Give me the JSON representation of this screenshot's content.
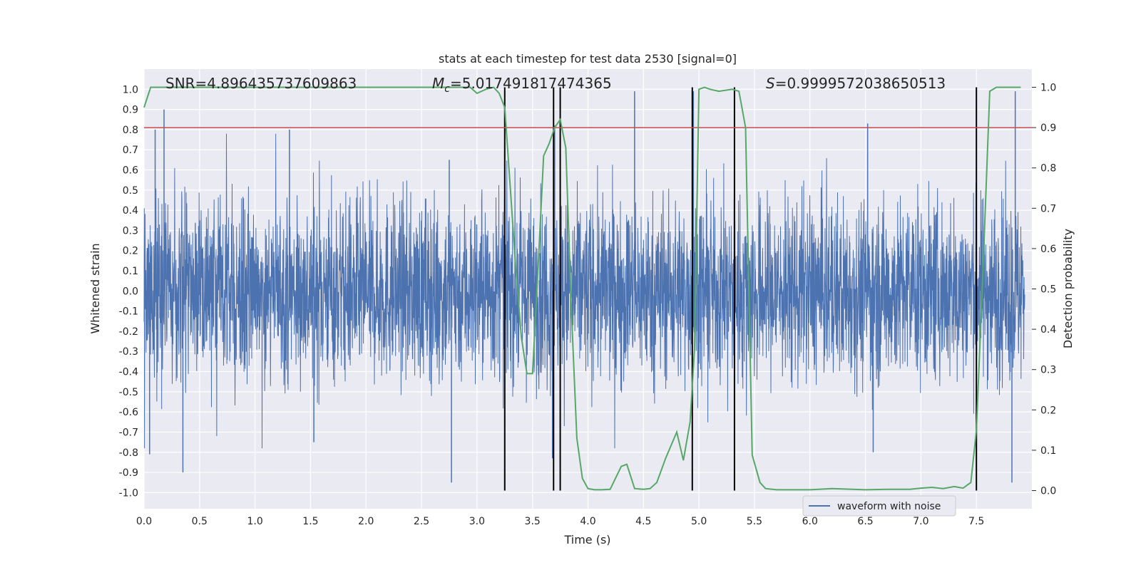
{
  "chart_data": {
    "type": "line",
    "title": "stats at each timestep for test data 2530 [signal=0]",
    "xlabel": "Time (s)",
    "ylabel": "Whitened strain",
    "y2label": "Detection probability",
    "xlim": [
      0.0,
      8.0
    ],
    "ylim": [
      -1.08,
      1.1
    ],
    "y2lim": [
      -0.045,
      1.045
    ],
    "xticks": [
      "0.0",
      "0.5",
      "1.0",
      "1.5",
      "2.0",
      "2.5",
      "3.0",
      "3.5",
      "4.0",
      "4.5",
      "5.0",
      "5.5",
      "6.0",
      "6.5",
      "7.0",
      "7.5"
    ],
    "yticks": [
      "1.0",
      "0.9",
      "0.8",
      "0.7",
      "0.6",
      "0.5",
      "0.4",
      "0.3",
      "0.2",
      "0.1",
      "0.0",
      "-0.1",
      "-0.2",
      "-0.3",
      "-0.4",
      "-0.5",
      "-0.6",
      "-0.7",
      "-0.8",
      "-0.9",
      "-1.0"
    ],
    "y2ticks": [
      "1.0",
      "0.9",
      "0.8",
      "0.7",
      "0.6",
      "0.5",
      "0.4",
      "0.3",
      "0.2",
      "0.1",
      "0.0"
    ],
    "grid": true,
    "legend_position": "lower-right",
    "annotations": {
      "snr": "SNR=4.896435737609863",
      "mc_symbol": "M",
      "mc_sub": "c",
      "mc_value": "=5.017491817474365",
      "s_symbol": "S",
      "s_value": "=0.9999572038650513"
    },
    "threshold": {
      "value": 0.9,
      "axis": "y2",
      "color": "#c44e52"
    },
    "vertical_lines": [
      3.25,
      3.69,
      3.75,
      4.94,
      5.32,
      7.5
    ],
    "series": [
      {
        "name": "waveform with noise",
        "axis": "y",
        "color": "#4c72b0",
        "kind": "noise",
        "typical_amplitude": 0.4,
        "peaks_up": [
          {
            "x": 0.18,
            "y": 0.9
          },
          {
            "x": 1.31,
            "y": 0.8
          },
          {
            "x": 2.75,
            "y": 0.65
          },
          {
            "x": 3.7,
            "y": 0.82
          },
          {
            "x": 4.42,
            "y": 0.99
          },
          {
            "x": 4.95,
            "y": 0.99
          },
          {
            "x": 6.52,
            "y": 0.83
          },
          {
            "x": 7.85,
            "y": 0.99
          },
          {
            "x": 0.1,
            "y": 0.8
          }
        ],
        "peaks_down": [
          {
            "x": 0.35,
            "y": -0.9
          },
          {
            "x": 2.77,
            "y": -0.95
          },
          {
            "x": 3.68,
            "y": -0.83
          },
          {
            "x": 7.82,
            "y": -0.95
          },
          {
            "x": 6.57,
            "y": -0.8
          },
          {
            "x": 1.53,
            "y": -0.75
          },
          {
            "x": 0.05,
            "y": -0.81
          }
        ]
      },
      {
        "name": "",
        "axis": "y2",
        "color": "#55a868",
        "x": [
          0.0,
          0.06,
          0.5,
          1.0,
          1.5,
          2.0,
          2.5,
          2.8,
          2.94,
          3.0,
          3.08,
          3.15,
          3.2,
          3.25,
          3.3,
          3.35,
          3.4,
          3.45,
          3.5,
          3.55,
          3.6,
          3.65,
          3.7,
          3.75,
          3.8,
          3.85,
          3.9,
          3.95,
          4.0,
          4.06,
          4.12,
          4.2,
          4.3,
          4.35,
          4.42,
          4.5,
          4.56,
          4.62,
          4.7,
          4.8,
          4.86,
          4.92,
          4.96,
          5.0,
          5.05,
          5.1,
          5.18,
          5.3,
          5.36,
          5.42,
          5.48,
          5.55,
          5.6,
          5.7,
          5.8,
          6.0,
          6.2,
          6.5,
          6.7,
          6.9,
          7.0,
          7.1,
          7.2,
          7.3,
          7.38,
          7.45,
          7.5,
          7.56,
          7.62,
          7.68,
          7.8,
          7.9
        ],
        "y": [
          0.95,
          1.0,
          1.0,
          1.0,
          1.0,
          1.0,
          1.0,
          1.0,
          1.0,
          0.985,
          0.995,
          1.0,
          0.985,
          0.95,
          0.75,
          0.55,
          0.38,
          0.29,
          0.29,
          0.55,
          0.83,
          0.86,
          0.9,
          0.92,
          0.85,
          0.45,
          0.13,
          0.03,
          0.005,
          0.002,
          0.002,
          0.003,
          0.06,
          0.065,
          0.005,
          0.003,
          0.005,
          0.02,
          0.08,
          0.145,
          0.075,
          0.17,
          0.35,
          0.995,
          1.0,
          0.995,
          0.99,
          0.995,
          0.99,
          0.9,
          0.088,
          0.02,
          0.005,
          0.002,
          0.002,
          0.002,
          0.005,
          0.002,
          0.003,
          0.003,
          0.006,
          0.008,
          0.005,
          0.01,
          0.006,
          0.02,
          0.15,
          0.55,
          0.99,
          1.0,
          1.0,
          1.0
        ]
      }
    ]
  }
}
